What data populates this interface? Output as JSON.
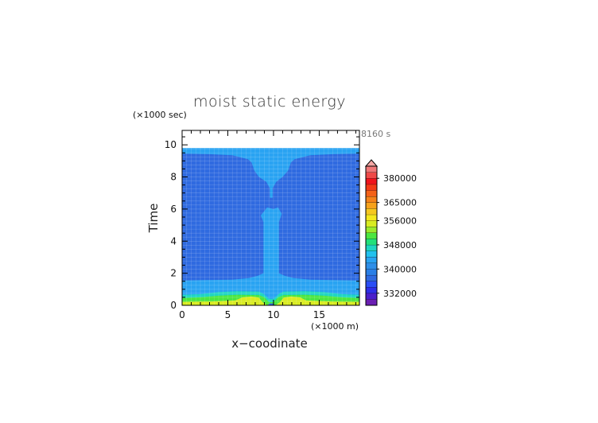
{
  "chart_data": {
    "type": "heatmap",
    "title": "moist static energy",
    "xlabel": "x−coodinate",
    "ylabel": "Time",
    "x_unit": "(×1000 m)",
    "y_unit": "(×1000 sec)",
    "time_stamp": "8160 s",
    "xlim": [
      0,
      19.4
    ],
    "ylim": [
      0,
      10.9
    ],
    "x_ticks": [
      0,
      5,
      10,
      15
    ],
    "y_ticks": [
      0,
      2,
      4,
      6,
      8,
      10
    ],
    "grid": true,
    "data_extent_y": 9.8,
    "colorbar": {
      "levels": [
        328000,
        330000,
        332000,
        334000,
        336000,
        338000,
        340000,
        342000,
        344000,
        346000,
        348000,
        350000,
        352000,
        354000,
        356000,
        358000,
        362000,
        365000,
        368000,
        372000,
        376000,
        380000,
        384000,
        388000
      ],
      "labels": [
        332000,
        340000,
        348000,
        356000,
        365000,
        380000
      ],
      "colors": [
        "#6b1fb3",
        "#4b1fcc",
        "#2e2ee8",
        "#2a4ef5",
        "#2f6ae0",
        "#2a7fe6",
        "#2f8fe8",
        "#29a3f2",
        "#22c1ee",
        "#1fd6c2",
        "#22e07a",
        "#4be640",
        "#9bea2c",
        "#d9ec22",
        "#f5e81e",
        "#f6c820",
        "#f6a21c",
        "#f5831a",
        "#f46218",
        "#f43a16",
        "#f0141c",
        "#ef4a48",
        "#f07878"
      ],
      "extend_top_color": "#f4a7a4"
    },
    "regions": [
      {
        "name": "upper-top",
        "value": 342000,
        "color": "#29a3f2"
      },
      {
        "name": "upper-body",
        "value": 340000,
        "color": "#2f6ae0"
      },
      {
        "name": "center-column",
        "value": 342000,
        "color": "#29a3f2"
      },
      {
        "name": "lower-band",
        "value": 342000,
        "color": "#29a3f2"
      },
      {
        "name": "surface-layer",
        "value": 346000,
        "color": "#1fd6c2"
      },
      {
        "name": "surface-layer-core",
        "value": 350000,
        "color": "#4be640"
      },
      {
        "name": "surface-max",
        "value": 354000,
        "color": "#d9ec22"
      },
      {
        "name": "surface-center-low",
        "value": 340000,
        "color": "#2f6ae0"
      }
    ]
  }
}
